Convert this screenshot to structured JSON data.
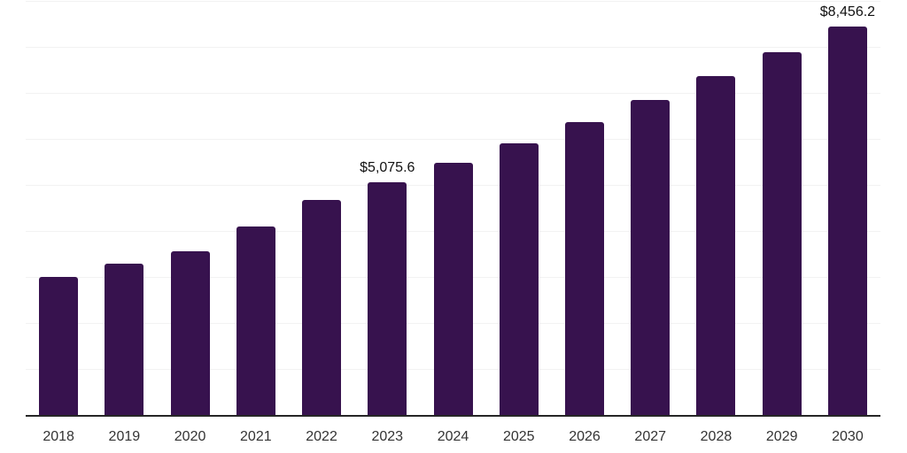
{
  "chart_data": {
    "type": "bar",
    "categories": [
      "2018",
      "2019",
      "2020",
      "2021",
      "2022",
      "2023",
      "2024",
      "2025",
      "2026",
      "2027",
      "2028",
      "2029",
      "2030"
    ],
    "values": [
      3020,
      3300,
      3585,
      4125,
      4700,
      5075.6,
      5495,
      5930,
      6390,
      6875,
      7390,
      7910,
      8456.2
    ],
    "value_labels": [
      "",
      "",
      "",
      "",
      "",
      "$5,075.6",
      "",
      "",
      "",
      "",
      "",
      "",
      "$8,456.2"
    ],
    "title": "",
    "xlabel": "",
    "ylabel": "",
    "ylim": [
      0,
      9000
    ],
    "gridline_step": 1000,
    "grid": "horizontal-only",
    "y_tick_labels_visible": false,
    "legend": "none",
    "colors": {
      "bar": "#37124E",
      "background": "#FFFFFF",
      "gridline": "#F2F2F2",
      "axis_line": "#262626",
      "tick_label": "#333333",
      "value_label": "#111111"
    }
  }
}
